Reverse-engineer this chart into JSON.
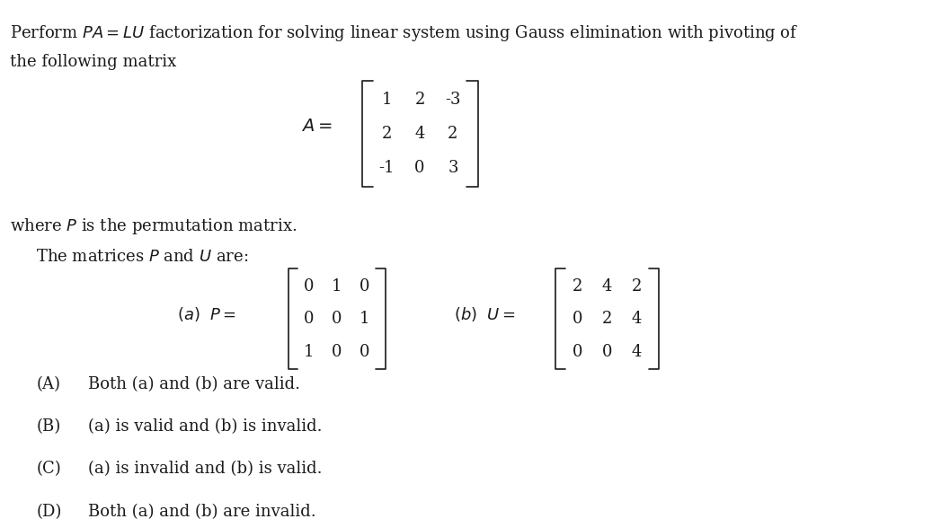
{
  "background_color": "#ffffff",
  "text_color": "#1a1a1a",
  "figsize": [
    10.47,
    5.78
  ],
  "dpi": 100,
  "title_line1": "Perform $PA = LU$ factorization for solving linear system using Gauss elimination with pivoting of",
  "title_line2": "the following matrix",
  "matrix_A_label": "$A = $",
  "matrix_A": [
    [
      1,
      2,
      -3
    ],
    [
      2,
      4,
      2
    ],
    [
      -1,
      0,
      3
    ]
  ],
  "where_text": "where $P$ is the permutation matrix.",
  "matrices_text": "The matrices $P$ and $U$ are:",
  "part_a_label": "$(a)$  $P = $",
  "matrix_P": [
    [
      0,
      1,
      0
    ],
    [
      0,
      0,
      1
    ],
    [
      1,
      0,
      0
    ]
  ],
  "part_b_label": "$(b)$  $U = $",
  "matrix_U": [
    [
      2,
      4,
      2
    ],
    [
      0,
      2,
      4
    ],
    [
      0,
      0,
      4
    ]
  ],
  "options": [
    [
      "(A)",
      "Both (a) and (b) are valid."
    ],
    [
      "(B)",
      "(a) is valid and (b) is invalid."
    ],
    [
      "(C)",
      "(a) is invalid and (b) is valid."
    ],
    [
      "(D)",
      "Both (a) and (b) are invalid."
    ]
  ],
  "font_size_main": 13,
  "font_size_matrix": 13,
  "font_size_options": 13
}
